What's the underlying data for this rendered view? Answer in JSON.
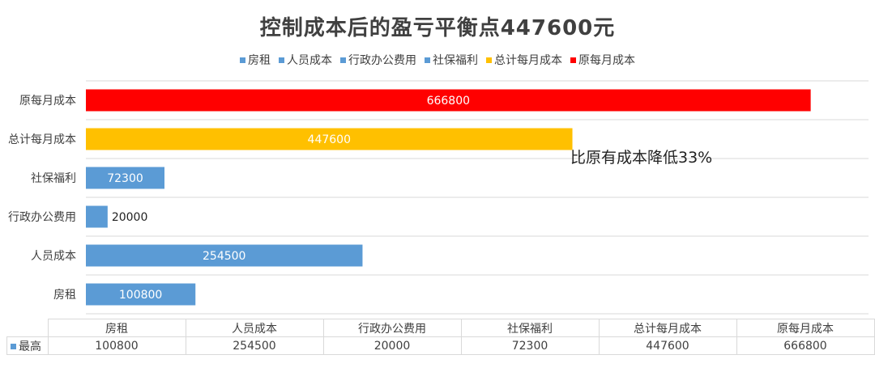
{
  "chart_data": {
    "type": "bar",
    "orientation": "horizontal",
    "title": "控制成本后的盈亏平衡点447600元",
    "categories": [
      "房租",
      "人员成本",
      "行政办公费用",
      "社保福利",
      "总计每月成本",
      "原每月成本"
    ],
    "values": [
      100800,
      254500,
      20000,
      72300,
      447600,
      666800
    ],
    "value_labels": [
      "100800",
      "254500",
      "20000",
      "72300",
      "447600",
      "666800"
    ],
    "bar_colors": [
      "#5b9bd5",
      "#5b9bd5",
      "#5b9bd5",
      "#5b9bd5",
      "#ffc000",
      "#ff0000"
    ],
    "legend": [
      {
        "label": "房租",
        "color": "#5b9bd5"
      },
      {
        "label": "人员成本",
        "color": "#5b9bd5"
      },
      {
        "label": "行政办公费用",
        "color": "#5b9bd5"
      },
      {
        "label": "社保福利",
        "color": "#5b9bd5"
      },
      {
        "label": "总计每月成本",
        "color": "#ffc000"
      },
      {
        "label": "原每月成本",
        "color": "#ff0000"
      }
    ],
    "legend_position": "top",
    "annotation": "比原有成本降低33%",
    "xlim": [
      0,
      720000
    ],
    "grid": true,
    "data_table": {
      "series_name": "最高",
      "series_color": "#5b9bd5",
      "columns": [
        "房租",
        "人员成本",
        "行政办公费用",
        "社保福利",
        "总计每月成本",
        "原每月成本"
      ],
      "values": [
        "100800",
        "254500",
        "20000",
        "72300",
        "447600",
        "666800"
      ]
    }
  }
}
